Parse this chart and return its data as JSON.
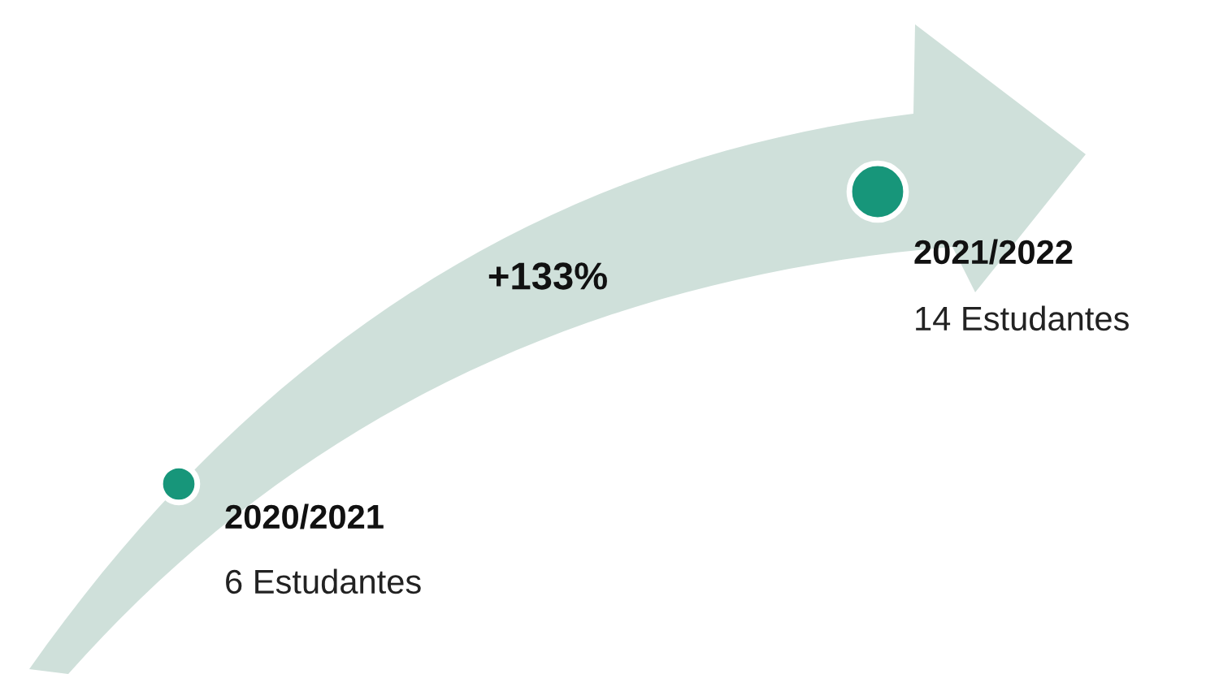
{
  "chart_data": {
    "type": "other",
    "categories": [
      "2020/2021",
      "2021/2022"
    ],
    "values": [
      6,
      14
    ],
    "value_labels": [
      "6 Estudantes",
      "14 Estudantes"
    ],
    "annotations": [
      "+133%"
    ],
    "colors": [
      "#17967a",
      "#17967a"
    ]
  }
}
